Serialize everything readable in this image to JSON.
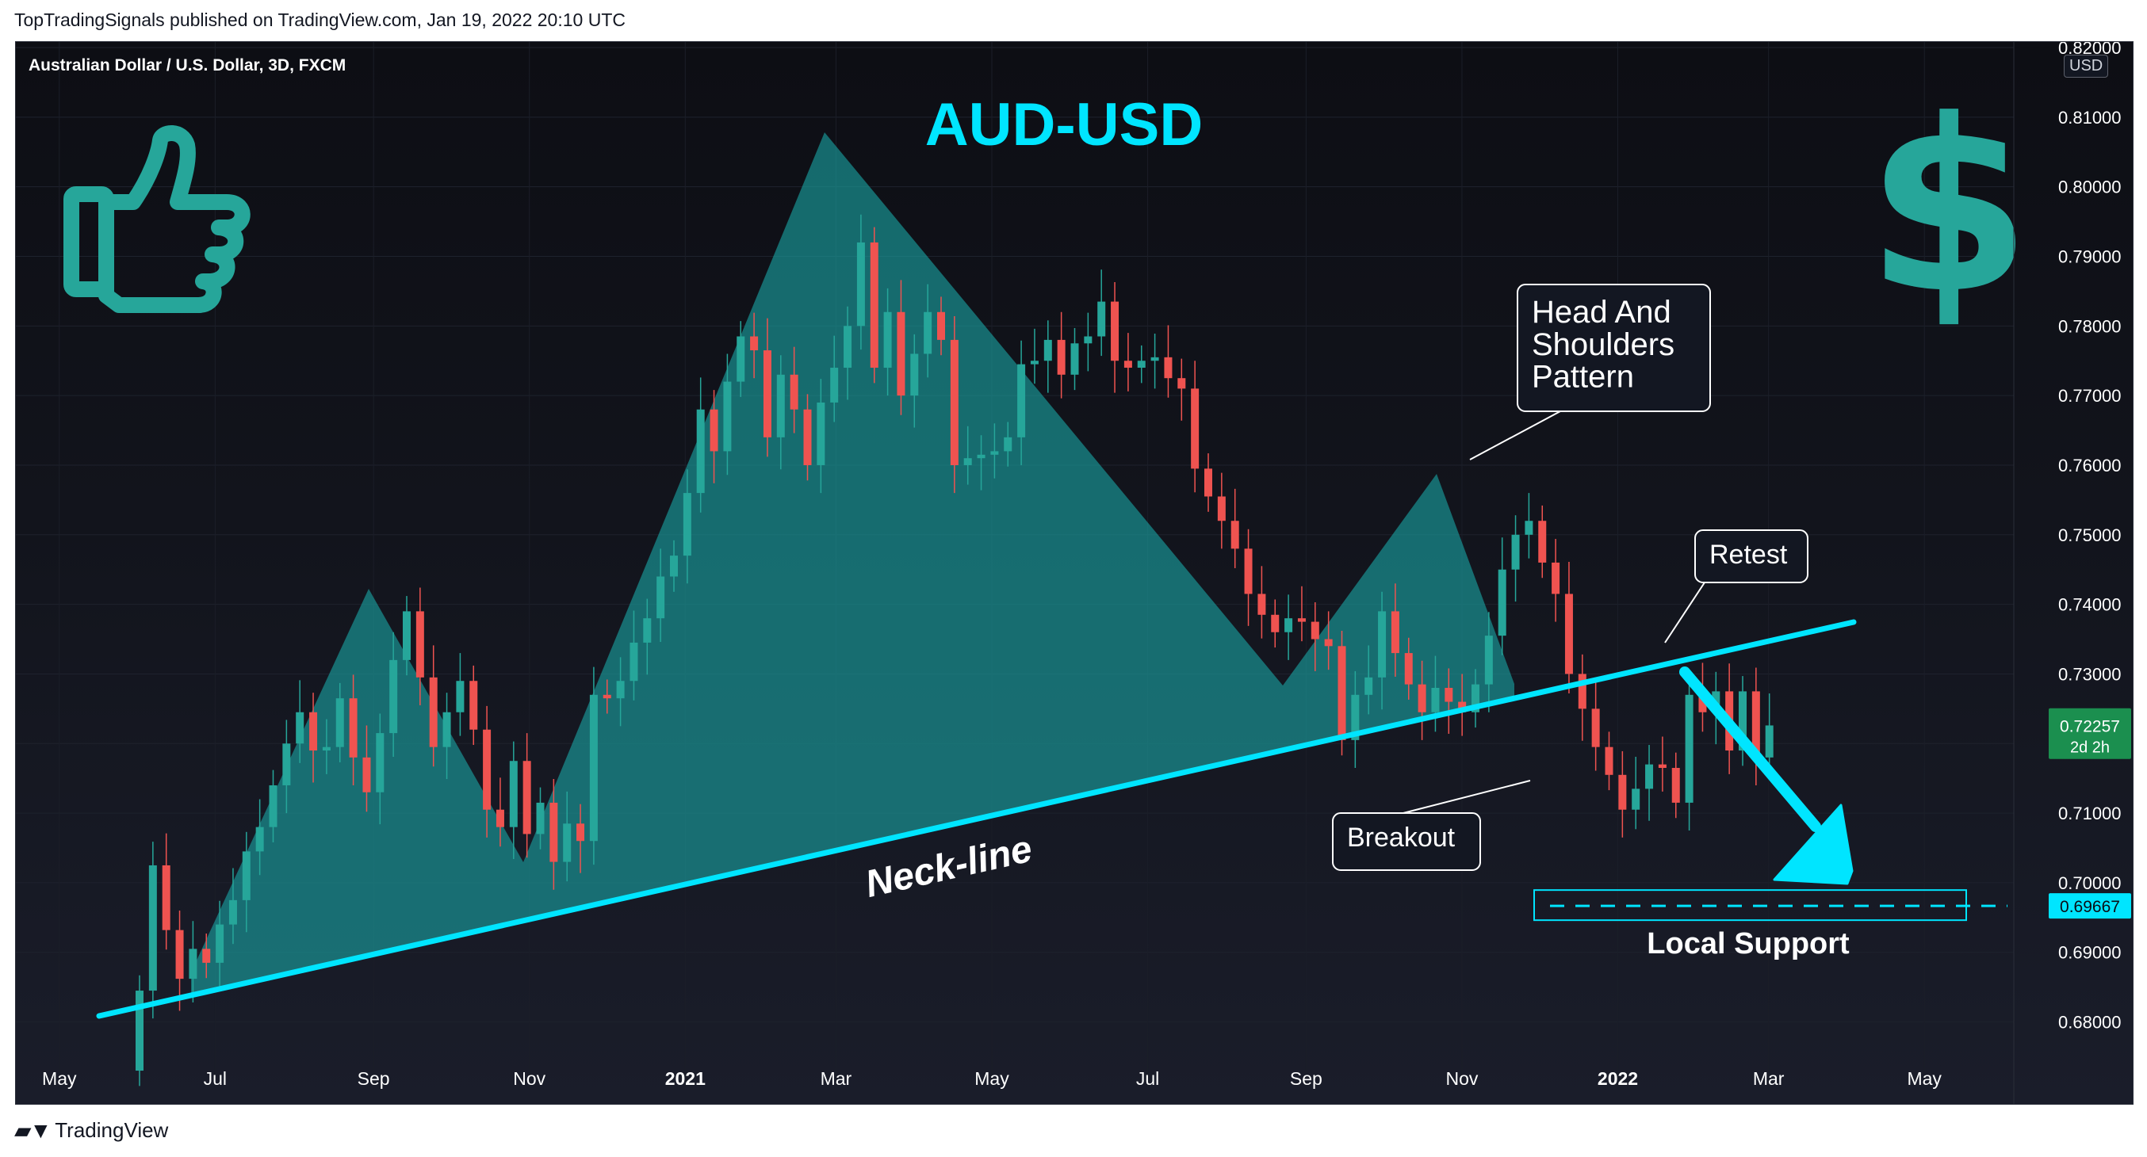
{
  "credit": "TopTradingSignals published on TradingView.com, Jan 19, 2022 20:10 UTC",
  "symbol": "Australian Dollar / U.S. Dollar, 3D, FXCM",
  "currency": "USD",
  "brand": "TradingView",
  "icons": {
    "thumbs_up": "thumbs-up-icon",
    "dollar": "dollar-sign-icon",
    "brand_logo": "tradingview-logo-icon"
  },
  "colors": {
    "up": "#26a69a",
    "down": "#ef5350",
    "accent": "#00e5ff",
    "fill": "#1aa3a3",
    "price_badge": "#1b8f4f",
    "support_badge": "#00e5ff"
  },
  "annotations": {
    "title": "AUD-USD",
    "neckline": "Neck-line",
    "pattern": "Head And\nShoulders\nPattern",
    "retest": "Retest",
    "breakout": "Breakout",
    "support": "Local Support"
  },
  "price_badge": {
    "value": "0.72257",
    "countdown": "2d 2h"
  },
  "support_badge": {
    "value": "0.69667"
  },
  "chart_data": {
    "type": "candlestick",
    "title": "AUD-USD",
    "y_axis": {
      "ticks": [
        "0.68000",
        "0.69000",
        "0.70000",
        "0.71000",
        "0.72000",
        "0.73000",
        "0.74000",
        "0.75000",
        "0.76000",
        "0.77000",
        "0.78000",
        "0.79000",
        "0.80000",
        "0.81000",
        "0.82000"
      ],
      "range": [
        0.6705,
        0.8208
      ]
    },
    "x_axis": {
      "ticks": [
        "May",
        "Jul",
        "Sep",
        "Nov",
        "2021",
        "Mar",
        "May",
        "Jul",
        "Sep",
        "Nov",
        "2022",
        "Mar",
        "May"
      ],
      "range": [
        "2020-04-14",
        "2022-06-05"
      ],
      "tick_dates": [
        "2020-05-01",
        "2020-07-01",
        "2020-09-01",
        "2020-11-01",
        "2021-01-01",
        "2021-03-01",
        "2021-05-01",
        "2021-07-01",
        "2021-09-01",
        "2021-11-01",
        "2022-01-01",
        "2022-03-01",
        "2022-05-01"
      ]
    },
    "candles_close": [
      0.6845,
      0.7025,
      0.6932,
      0.6862,
      0.6905,
      0.6885,
      0.694,
      0.6975,
      0.7045,
      0.708,
      0.714,
      0.72,
      0.7245,
      0.719,
      0.7195,
      0.7265,
      0.718,
      0.713,
      0.7215,
      0.732,
      0.739,
      0.7295,
      0.7195,
      0.7245,
      0.729,
      0.722,
      0.7105,
      0.708,
      0.7175,
      0.707,
      0.7115,
      0.703,
      0.7085,
      0.706,
      0.727,
      0.7265,
      0.729,
      0.7345,
      0.738,
      0.744,
      0.747,
      0.756,
      0.768,
      0.762,
      0.772,
      0.7785,
      0.7765,
      0.764,
      0.773,
      0.768,
      0.76,
      0.769,
      0.774,
      0.78,
      0.792,
      0.774,
      0.782,
      0.77,
      0.776,
      0.782,
      0.778,
      0.76,
      0.761,
      0.7615,
      0.762,
      0.764,
      0.7745,
      0.775,
      0.778,
      0.773,
      0.7775,
      0.7785,
      0.7835,
      0.775,
      0.774,
      0.775,
      0.7755,
      0.7725,
      0.771,
      0.7595,
      0.7555,
      0.752,
      0.748,
      0.7415,
      0.7385,
      0.736,
      0.738,
      0.7375,
      0.735,
      0.734,
      0.7205,
      0.727,
      0.7295,
      0.739,
      0.733,
      0.7285,
      0.7245,
      0.728,
      0.726,
      0.7245,
      0.7285,
      0.7355,
      0.745,
      0.75,
      0.752,
      0.746,
      0.7415,
      0.73,
      0.725,
      0.7195,
      0.7155,
      0.7105,
      0.7135,
      0.717,
      0.7165,
      0.7115,
      0.727,
      0.7245,
      0.7275,
      0.719,
      0.7275,
      0.718,
      0.7226
    ]
  }
}
